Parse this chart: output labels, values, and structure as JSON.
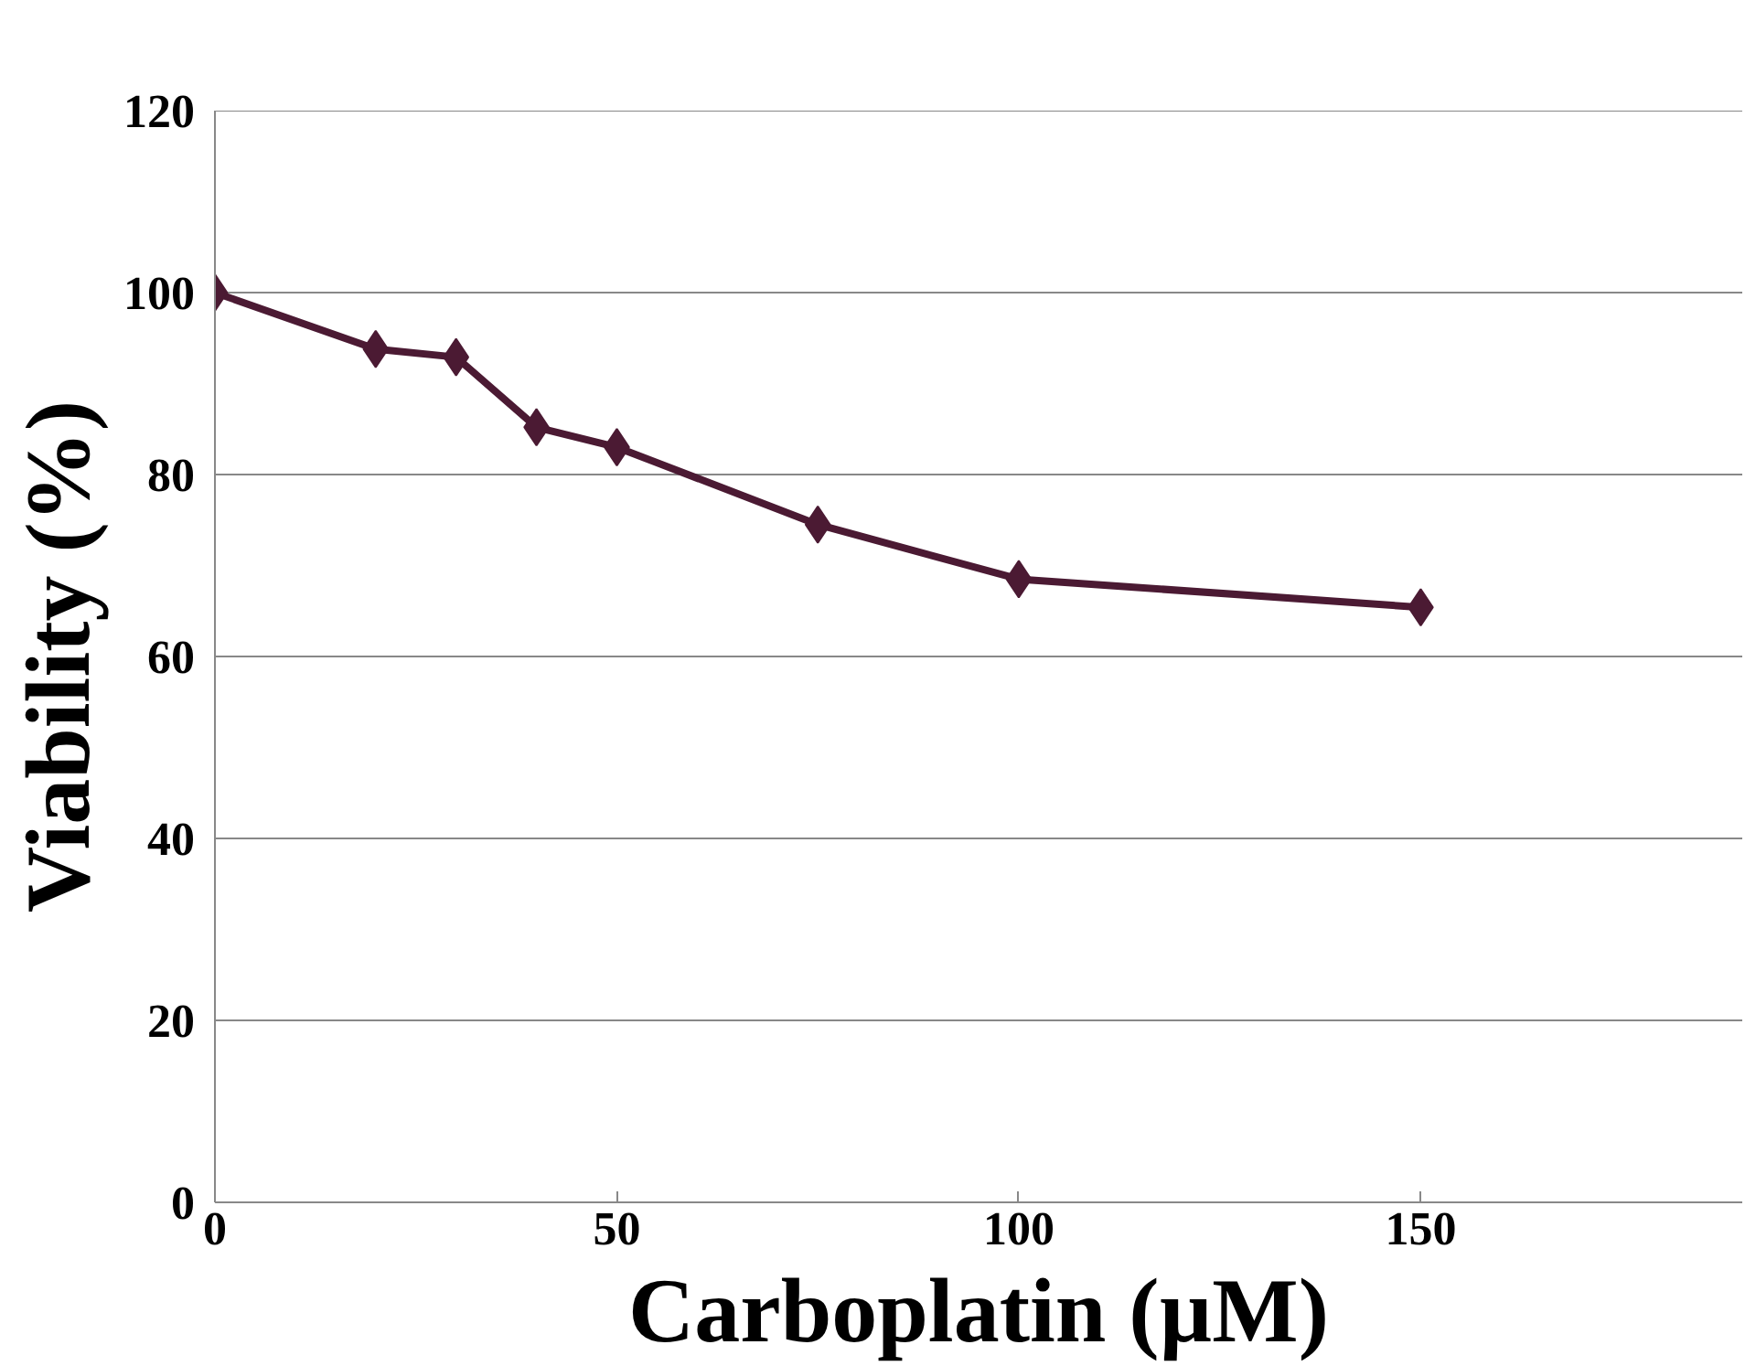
{
  "chart_data": {
    "type": "line",
    "xlabel": "Carboplatin (µM)",
    "ylabel": "Viability (%)",
    "x": [
      0,
      20,
      30,
      40,
      50,
      75,
      100,
      150
    ],
    "series": [
      {
        "color": "#4b1a33",
        "values": [
          100,
          93.8,
          92.9,
          85.2,
          83,
          74.5,
          68.5,
          65.4
        ]
      }
    ],
    "xlim": [
      0,
      190
    ],
    "xticks": [
      0,
      50,
      100,
      150
    ],
    "ylim": [
      0,
      120
    ],
    "yticks": [
      0,
      20,
      40,
      60,
      80,
      100,
      120
    ],
    "grid": "y",
    "marker": "diamond",
    "line_style": "solid"
  }
}
